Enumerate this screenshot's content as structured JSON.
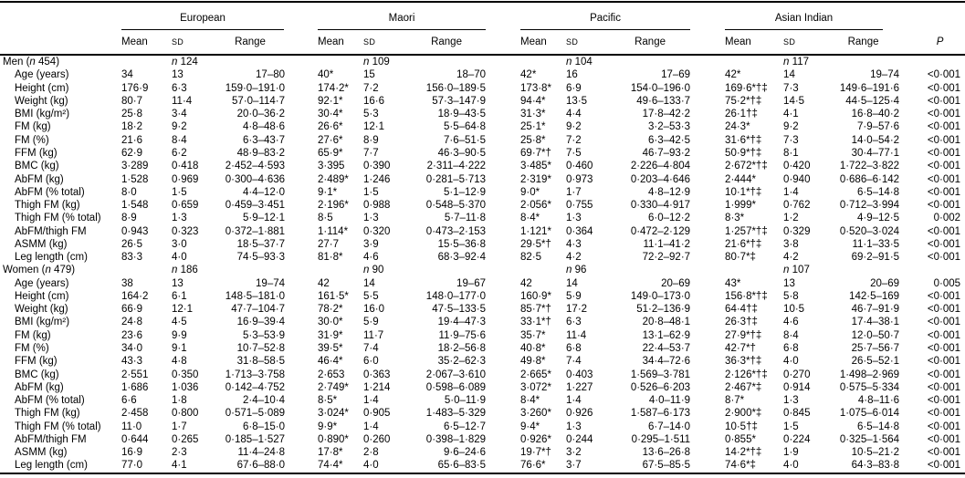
{
  "meta": {
    "n_symbol": "n"
  },
  "header": {
    "groups": [
      "European",
      "Maori",
      "Pacific",
      "Asian Indian"
    ],
    "mean": "Mean",
    "sd": "SD",
    "range": "Range",
    "p": "P"
  },
  "sections": [
    {
      "title_pre": "Men (",
      "title_post": " 454)",
      "counts": [
        "124",
        "109",
        "104",
        "117"
      ],
      "rows": [
        {
          "label": "Age (years)",
          "cells": [
            "34",
            "13",
            "17–80",
            "40*",
            "15",
            "18–70",
            "42*",
            "16",
            "17–69",
            "42*",
            "14",
            "19–74"
          ],
          "p": "<0·001"
        },
        {
          "label": "Height (cm)",
          "cells": [
            "176·9",
            "6·3",
            "159·0–191·0",
            "174·2*",
            "7·2",
            "156·0–189·5",
            "173·8*",
            "6·9",
            "154·0–196·0",
            "169·6*†‡",
            "7·3",
            "149·6–191·6"
          ],
          "p": "<0·001"
        },
        {
          "label": "Weight (kg)",
          "cells": [
            "80·7",
            "11·4",
            "57·0–114·7",
            "92·1*",
            "16·6",
            "57·3–147·9",
            "94·4*",
            "13·5",
            "49·6–133·7",
            "75·2*†‡",
            "14·5",
            "44·5–125·4"
          ],
          "p": "<0·001"
        },
        {
          "label": "BMI (kg/m²)",
          "cells": [
            "25·8",
            "3·4",
            "20·0–36·2",
            "30·4*",
            "5·3",
            "18·9–43·5",
            "31·3*",
            "4·4",
            "17·8–42·2",
            "26·1†‡",
            "4·1",
            "16·8–40·2"
          ],
          "p": "<0·001"
        },
        {
          "label": "FM (kg)",
          "cells": [
            "18·2",
            "9·2",
            "4·8–48·6",
            "26·6*",
            "12·1",
            "5·5–64·8",
            "25·1*",
            "9·2",
            "3·2–53·3",
            "24·3*",
            "9·2",
            "7·9–57·6"
          ],
          "p": "<0·001"
        },
        {
          "label": "FM (%)",
          "cells": [
            "21·6",
            "8·4",
            "6·3–43·7",
            "27·6*",
            "8·9",
            "7·6–51·5",
            "25·8*",
            "7·2",
            "6·3–42·5",
            "31·6*†‡",
            "7·3",
            "14·0–54·2"
          ],
          "p": "<0·001"
        },
        {
          "label": "FFM (kg)",
          "cells": [
            "62·9",
            "6·2",
            "48·9–83·2",
            "65·9*",
            "7·7",
            "46·3–90·5",
            "69·7*†",
            "7·5",
            "46·7–93·2",
            "50·9*†‡",
            "8·1",
            "30·4–77·1"
          ],
          "p": "<0·001"
        },
        {
          "label": "BMC (kg)",
          "cells": [
            "3·289",
            "0·418",
            "2·452–4·593",
            "3·395",
            "0·390",
            "2·311–4·222",
            "3·485*",
            "0·460",
            "2·226–4·804",
            "2·672*†‡",
            "0·420",
            "1·722–3·822"
          ],
          "p": "<0·001"
        },
        {
          "label": "AbFM (kg)",
          "cells": [
            "1·528",
            "0·969",
            "0·300–4·636",
            "2·489*",
            "1·246",
            "0·281–5·713",
            "2·319*",
            "0·973",
            "0·203–4·646",
            "2·444*",
            "0·940",
            "0·686–6·142"
          ],
          "p": "<0·001"
        },
        {
          "label": "AbFM (% total)",
          "cells": [
            "8·0",
            "1·5",
            "4·4–12·0",
            "9·1*",
            "1·5",
            "5·1–12·9",
            "9·0*",
            "1·7",
            "4·8–12·9",
            "10·1*†‡",
            "1·4",
            "6·5–14·8"
          ],
          "p": "<0·001"
        },
        {
          "label": "Thigh FM (kg)",
          "cells": [
            "1·548",
            "0·659",
            "0·459–3·451",
            "2·196*",
            "0·988",
            "0·548–5·370",
            "2·056*",
            "0·755",
            "0·330–4·917",
            "1·999*",
            "0·762",
            "0·712–3·994"
          ],
          "p": "<0·001"
        },
        {
          "label": "Thigh FM (% total)",
          "cells": [
            "8·9",
            "1·3",
            "5·9–12·1",
            "8·5",
            "1·3",
            "5·7–11·8",
            "8·4*",
            "1·3",
            "6·0–12·2",
            "8·3*",
            "1·2",
            "4·9–12·5"
          ],
          "p": "0·002"
        },
        {
          "label": "AbFM/thigh FM",
          "cells": [
            "0·943",
            "0·323",
            "0·372–1·881",
            "1·114*",
            "0·320",
            "0·473–2·153",
            "1·121*",
            "0·364",
            "0·472–2·129",
            "1·257*†‡",
            "0·329",
            "0·520–3·024"
          ],
          "p": "<0·001"
        },
        {
          "label": "ASMM (kg)",
          "cells": [
            "26·5",
            "3·0",
            "18·5–37·7",
            "27·7",
            "3·9",
            "15·5–36·8",
            "29·5*†",
            "4·3",
            "11·1–41·2",
            "21·6*†‡",
            "3·8",
            "11·1–33·5"
          ],
          "p": "<0·001"
        },
        {
          "label": "Leg length (cm)",
          "cells": [
            "83·3",
            "4·0",
            "74·5–93·3",
            "81·8*",
            "4·6",
            "68·3–92·4",
            "82·5",
            "4·2",
            "72·2–92·7",
            "80·7*‡",
            "4·2",
            "69·2–91·5"
          ],
          "p": "<0·001"
        }
      ]
    },
    {
      "title_pre": "Women (",
      "title_post": " 479)",
      "counts": [
        "186",
        "90",
        "96",
        "107"
      ],
      "rows": [
        {
          "label": "Age (years)",
          "cells": [
            "38",
            "13",
            "19–74",
            "42",
            "14",
            "19–67",
            "42",
            "14",
            "20–69",
            "43*",
            "13",
            "20–69"
          ],
          "p": "0·005"
        },
        {
          "label": "Height (cm)",
          "cells": [
            "164·2",
            "6·1",
            "148·5–181·0",
            "161·5*",
            "5·5",
            "148·0–177·0",
            "160·9*",
            "5·9",
            "149·0–173·0",
            "156·8*†‡",
            "5·8",
            "142·5–169"
          ],
          "p": "<0·001"
        },
        {
          "label": "Weight (kg)",
          "cells": [
            "66·9",
            "12·1",
            "47·7–104·7",
            "78·2*",
            "16·0",
            "47·5–133·5",
            "85·7*†",
            "17·2",
            "51·2–136·9",
            "64·4†‡",
            "10·5",
            "46·7–91·9"
          ],
          "p": "<0·001"
        },
        {
          "label": "BMI (kg/m²)",
          "cells": [
            "24·8",
            "4·5",
            "16·9–39·4",
            "30·0*",
            "5·9",
            "19·4–47·3",
            "33·1*†",
            "6·3",
            "20·8–48·1",
            "26·3†‡",
            "4·6",
            "17·4–38·1"
          ],
          "p": "<0·001"
        },
        {
          "label": "FM (kg)",
          "cells": [
            "23·6",
            "9·9",
            "5·3–53·9",
            "31·9*",
            "11·7",
            "11·9–75·6",
            "35·7*",
            "11·4",
            "13·1–62·9",
            "27·9*†‡",
            "8·4",
            "12·0–50·7"
          ],
          "p": "<0·001"
        },
        {
          "label": "FM (%)",
          "cells": [
            "34·0",
            "9·1",
            "10·7–52·8",
            "39·5*",
            "7·4",
            "18·2–56·8",
            "40·8*",
            "6·8",
            "22·4–53·7",
            "42·7*†",
            "6·8",
            "25·7–56·7"
          ],
          "p": "<0·001"
        },
        {
          "label": "FFM (kg)",
          "cells": [
            "43·3",
            "4·8",
            "31·8–58·5",
            "46·4*",
            "6·0",
            "35·2–62·3",
            "49·8*",
            "7·4",
            "34·4–72·6",
            "36·3*†‡",
            "4·0",
            "26·5–52·1"
          ],
          "p": "<0·001"
        },
        {
          "label": "BMC (kg)",
          "cells": [
            "2·551",
            "0·350",
            "1·713–3·758",
            "2·653",
            "0·363",
            "2·067–3·610",
            "2·665*",
            "0·403",
            "1·569–3·781",
            "2·126*†‡",
            "0·270",
            "1·498–2·969"
          ],
          "p": "<0·001"
        },
        {
          "label": "AbFM (kg)",
          "cells": [
            "1·686",
            "1·036",
            "0·142–4·752",
            "2·749*",
            "1·214",
            "0·598–6·089",
            "3·072*",
            "1·227",
            "0·526–6·203",
            "2·467*‡",
            "0·914",
            "0·575–5·334"
          ],
          "p": "<0·001"
        },
        {
          "label": "AbFM (% total)",
          "cells": [
            "6·6",
            "1·8",
            "2·4–10·4",
            "8·5*",
            "1·4",
            "5·0–11·9",
            "8·4*",
            "1·4",
            "4·0–11·9",
            "8·7*",
            "1·3",
            "4·8–11·6"
          ],
          "p": "<0·001"
        },
        {
          "label": "Thigh FM (kg)",
          "cells": [
            "2·458",
            "0·800",
            "0·571–5·089",
            "3·024*",
            "0·905",
            "1·483–5·329",
            "3·260*",
            "0·926",
            "1·587–6·173",
            "2·900*‡",
            "0·845",
            "1·075–6·014"
          ],
          "p": "<0·001"
        },
        {
          "label": "Thigh FM (% total)",
          "cells": [
            "11·0",
            "1·7",
            "6·8–15·0",
            "9·9*",
            "1·4",
            "6·5–12·7",
            "9·4*",
            "1·3",
            "6·7–14·0",
            "10·5†‡",
            "1·5",
            "6·5–14·8"
          ],
          "p": "<0·001"
        },
        {
          "label": "AbFM/thigh FM",
          "cells": [
            "0·644",
            "0·265",
            "0·185–1·527",
            "0·890*",
            "0·260",
            "0·398–1·829",
            "0·926*",
            "0·244",
            "0·295–1·511",
            "0·855*",
            "0·224",
            "0·325–1·564"
          ],
          "p": "<0·001"
        },
        {
          "label": "ASMM (kg)",
          "cells": [
            "16·9",
            "2·3",
            "11·4–24·8",
            "17·8*",
            "2·8",
            "9·6–24·6",
            "19·7*†",
            "3·2",
            "13·6–26·8",
            "14·2*†‡",
            "1·9",
            "10·5–21·2"
          ],
          "p": "<0·001"
        },
        {
          "label": "Leg length (cm)",
          "cells": [
            "77·0",
            "4·1",
            "67·6–88·0",
            "74·4*",
            "4·0",
            "65·6–83·5",
            "76·6*",
            "3·7",
            "67·5–85·5",
            "74·6*‡",
            "4·0",
            "64·3–83·8"
          ],
          "p": "<0·001"
        }
      ]
    }
  ]
}
